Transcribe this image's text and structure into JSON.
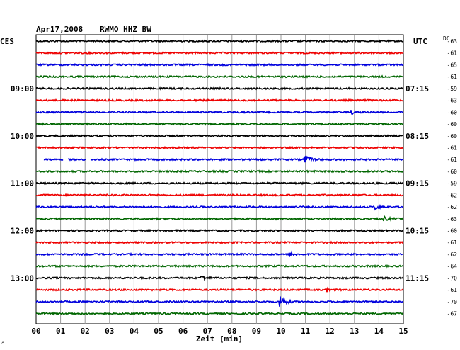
{
  "header": {
    "date": "Apr17,2008",
    "station": "RWMO HHZ BW",
    "left_tz": "CES",
    "right_tz": "UTC",
    "dc_label": "DC",
    "corner_mark": "^"
  },
  "chart_data": {
    "type": "line",
    "title": "Apr17,2008   RWMO HHZ BW",
    "xlabel": "Zeit [min]",
    "ylabel": "",
    "xlim": [
      0,
      15
    ],
    "x_ticks": [
      "00",
      "01",
      "02",
      "03",
      "04",
      "05",
      "06",
      "07",
      "08",
      "09",
      "10",
      "11",
      "12",
      "13",
      "14",
      "15"
    ],
    "grid": true,
    "trace_colors": [
      "#000000",
      "#ee0000",
      "#0000dd",
      "#006600"
    ],
    "left_time_labels": [
      {
        "trace": 4,
        "text": "09:00"
      },
      {
        "trace": 8,
        "text": "10:00"
      },
      {
        "trace": 12,
        "text": "11:00"
      },
      {
        "trace": 16,
        "text": "12:00"
      },
      {
        "trace": 20,
        "text": "13:00"
      }
    ],
    "right_time_labels": [
      {
        "trace": 4,
        "text": "07:15"
      },
      {
        "trace": 8,
        "text": "08:15"
      },
      {
        "trace": 12,
        "text": "09:15"
      },
      {
        "trace": 16,
        "text": "10:15"
      },
      {
        "trace": 20,
        "text": "11:15"
      }
    ],
    "dc_offsets": [
      "-63",
      "-61",
      "-65",
      "-61",
      "-59",
      "-63",
      "-60",
      "-60",
      "-60",
      "-61",
      "-61",
      "-60",
      "-59",
      "-62",
      "-62",
      "-63",
      "-60",
      "-61",
      "-62",
      "-64",
      "-70",
      "-61",
      "-70",
      "-67"
    ],
    "events": [
      {
        "trace": 10,
        "minute": 11.0,
        "amplitude": 6
      },
      {
        "trace": 22,
        "minute": 10.0,
        "amplitude": 9
      },
      {
        "trace": 18,
        "minute": 10.4,
        "amplitude": 3
      },
      {
        "trace": 21,
        "minute": 11.9,
        "amplitude": 2
      },
      {
        "trace": 15,
        "minute": 14.2,
        "amplitude": 3
      },
      {
        "trace": 14,
        "minute": 13.9,
        "amplitude": 3
      },
      {
        "trace": 20,
        "minute": 6.8,
        "amplitude": 3
      },
      {
        "trace": 6,
        "minute": 12.9,
        "amplitude": 2
      }
    ],
    "gaps": [
      {
        "trace": 10,
        "from": 0.0,
        "to": 0.3
      },
      {
        "trace": 10,
        "from": 1.1,
        "to": 1.3
      },
      {
        "trace": 10,
        "from": 2.05,
        "to": 2.2
      }
    ]
  }
}
